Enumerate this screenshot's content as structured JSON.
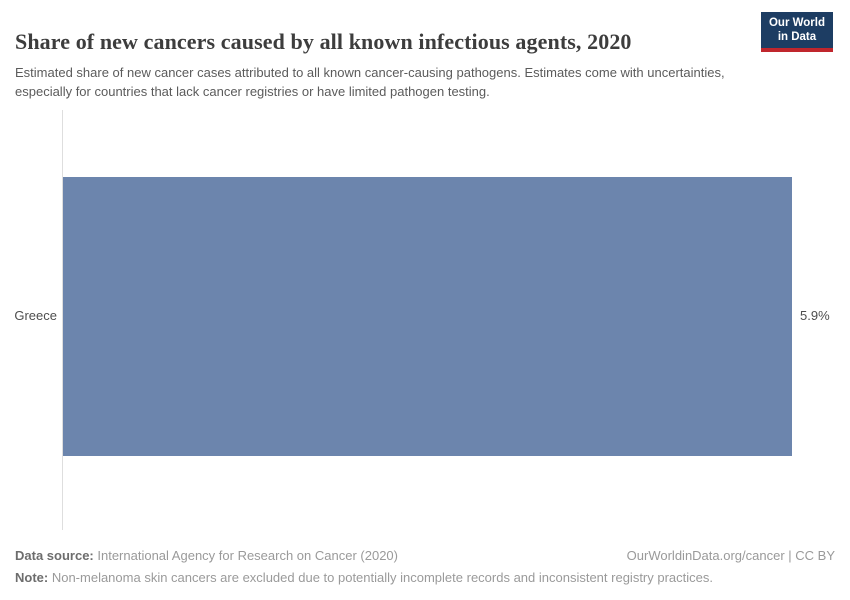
{
  "header": {
    "title": "Share of new cancers caused by all known infectious agents, 2020",
    "subtitle": "Estimated share of new cancer cases attributed to all known cancer-causing pathogens. Estimates come with uncertainties, especially for countries that lack cancer registries or have limited pathogen testing.",
    "logo": {
      "line1": "Our World",
      "line2": "in Data"
    }
  },
  "chart_data": {
    "type": "bar",
    "orientation": "horizontal",
    "title": "Share of new cancers caused by all known infectious agents, 2020",
    "categories": [
      "Greece"
    ],
    "values": [
      5.9
    ],
    "value_labels": [
      "5.9%"
    ],
    "xlabel": "",
    "ylabel": "",
    "xlim": [
      0,
      6.25
    ],
    "grid": false,
    "legend": false,
    "bar_color": "#6c85ad",
    "axis_color": "#dedede"
  },
  "footer": {
    "source_label": "Data source:",
    "source_text": " International Agency for Research on Cancer (2020)",
    "link_text": "OurWorldinData.org/cancer | CC BY",
    "note_label": "Note:",
    "note_text": " Non-melanoma skin cancers are excluded due to potentially incomplete records and inconsistent registry practices."
  },
  "colors": {
    "bar": "#6c85ad",
    "logo_bg": "#1d3d63",
    "logo_accent": "#c0262d",
    "axis_line": "#dedede"
  }
}
